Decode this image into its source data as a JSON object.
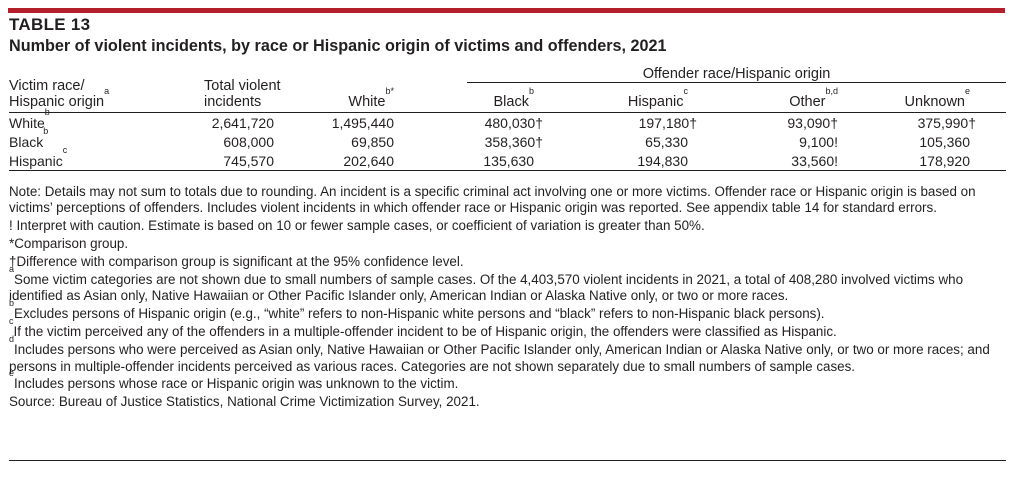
{
  "table_label": "TABLE 13",
  "title": "Number of violent incidents, by race or Hispanic origin of victims and offenders, 2021",
  "header": {
    "victim_line1": "Victim race/",
    "victim_line2": "Hispanic origin",
    "victim_sup": "a",
    "total_line1": "Total violent",
    "total_line2": "incidents",
    "group": "Offender race/Hispanic origin",
    "white": "White",
    "white_sup": "b*",
    "black": "Black",
    "black_sup": "b",
    "hispanic": "Hispanic",
    "hispanic_sup": "c",
    "other": "Other",
    "other_sup": "b,d",
    "unknown": "Unknown",
    "unknown_sup": "e"
  },
  "rows": [
    {
      "label": "White",
      "sup": "b",
      "total": "2,641,720",
      "white": "1,495,440",
      "black": "480,030†",
      "hispanic": "197,180†",
      "other": "93,090†",
      "unknown": "375,990†"
    },
    {
      "label": "Black",
      "sup": "b",
      "total": "608,000",
      "white": "69,850",
      "black": "358,360†",
      "hispanic": "65,330",
      "other": "9,100!",
      "unknown": "105,360"
    },
    {
      "label": "Hispanic",
      "sup": "c",
      "total": "745,570",
      "white": "202,640",
      "black": "135,630",
      "hispanic": "194,830",
      "other": "33,560!",
      "unknown": "178,920"
    }
  ],
  "notes": {
    "main": "Note: Details may not sum to totals due to rounding. An incident is a specific criminal act involving one or more victims. Offender race or Hispanic origin is based on victims’ perceptions of offenders. Includes violent incidents in which offender race or Hispanic origin was reported. See appendix table 14 for standard errors.",
    "caution": "! Interpret with caution. Estimate is based on 10 or fewer sample cases, or coefficient of variation is greater than 50%.",
    "comparison": "*Comparison group.",
    "dagger": "†Difference with comparison group is significant at the 95% confidence level.",
    "a_mark": "a",
    "a": "Some victim categories are not shown due to small numbers of sample cases. Of the 4,403,570 violent incidents in 2021, a total of 408,280 involved victims who identified as Asian only, Native Hawaiian or Other Pacific Islander only, American Indian or Alaska Native only, or two or more races.",
    "b_mark": "b",
    "b": "Excludes persons of Hispanic origin (e.g., “white” refers to non-Hispanic white persons and “black” refers to non-Hispanic black persons).",
    "c_mark": "c",
    "c": "If the victim perceived any of the offenders in a multiple-offender incident to be of Hispanic origin, the offenders were classified as Hispanic.",
    "d_mark": "d",
    "d": "Includes persons who were perceived as Asian only, Native Hawaiian or Other Pacific Islander only, American Indian or Alaska Native only, or two or more races; and persons in multiple-offender incidents perceived as various races. Categories are not shown separately due to small numbers of sample cases.",
    "e_mark": "e",
    "e": "Includes persons whose race or Hispanic origin was unknown to the victim.",
    "source": "Source: Bureau of Justice Statistics, National Crime Victimization Survey, 2021."
  },
  "colors": {
    "accent_bar": "#b3202c",
    "text": "#231f20"
  }
}
